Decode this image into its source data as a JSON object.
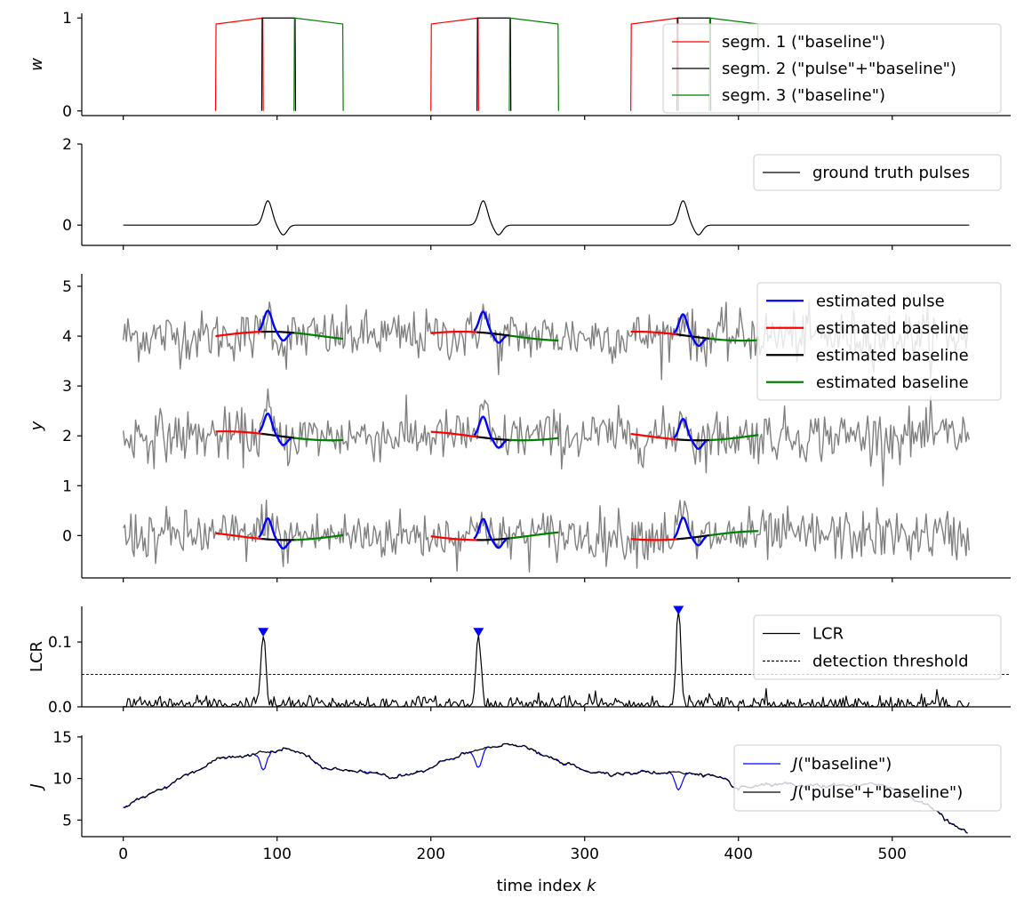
{
  "chart_data": [
    {
      "type": "line",
      "ylabel": "w",
      "ylim": [
        -0.05,
        1.05
      ],
      "yticks": [
        0,
        1
      ],
      "legend": "top-right",
      "series": [
        {
          "name": "segm. 1 (\"baseline\")",
          "color": "#ff0000",
          "windows": [
            [
              60,
              91
            ],
            [
              200,
              231
            ],
            [
              330,
              361
            ]
          ]
        },
        {
          "name": "segm. 2 (\"pulse\"+\"baseline\")",
          "color": "#000000",
          "windows": [
            [
              90,
              112
            ],
            [
              230,
              252
            ],
            [
              360,
              382
            ]
          ]
        },
        {
          "name": "segm. 3 (\"baseline\")",
          "color": "#008000",
          "windows": [
            [
              111,
              143
            ],
            [
              251,
              283
            ],
            [
              381,
              413
            ]
          ]
        }
      ]
    },
    {
      "type": "line",
      "ylabel": "",
      "ylim": [
        -0.5,
        2
      ],
      "yticks": [
        0,
        2
      ],
      "legend": "top-right",
      "series": [
        {
          "name": "ground truth pulses",
          "color": "#000000",
          "x_range": [
            0,
            550
          ],
          "pulse_centers": [
            94,
            234,
            364
          ],
          "amplitude": 0.6
        }
      ]
    },
    {
      "type": "line",
      "ylabel": "y",
      "ylim": [
        -0.85,
        5.25
      ],
      "yticks": [
        0,
        1,
        2,
        3,
        4,
        5
      ],
      "legend": "top-right",
      "offsets": [
        4,
        2,
        0
      ],
      "noise_color": "#808080",
      "series": [
        {
          "name": "estimated pulse",
          "color": "#0000ff"
        },
        {
          "name": "estimated baseline",
          "color": "#ff0000"
        },
        {
          "name": "estimated baseline",
          "color": "#000000"
        },
        {
          "name": "estimated baseline",
          "color": "#008000"
        }
      ]
    },
    {
      "type": "line",
      "ylabel": "LCR",
      "ylim": [
        0,
        0.155
      ],
      "yticks": [
        0.0,
        0.1
      ],
      "ytick_labels": [
        "0.0",
        "0.1"
      ],
      "threshold": 0.05,
      "legend": "top-right",
      "peaks": [
        [
          91,
          0.108
        ],
        [
          231,
          0.108
        ],
        [
          361,
          0.142
        ]
      ],
      "series": [
        {
          "name": "LCR",
          "color": "#000000"
        },
        {
          "name": "detection threshold",
          "color": "#000000",
          "style": "dashed",
          "value": 0.05
        }
      ]
    },
    {
      "type": "line",
      "ylabel": "J",
      "xlabel": "time index k",
      "xlim": [
        -27,
        577
      ],
      "xticks": [
        0,
        100,
        200,
        300,
        400,
        500
      ],
      "ylim": [
        3,
        15.2
      ],
      "yticks": [
        5,
        10,
        15
      ],
      "legend": "top-right",
      "series": [
        {
          "name": "J(\"baseline\")",
          "color": "#0000ff"
        },
        {
          "name": "J(\"pulse\"+\"baseline\")",
          "color": "#000000"
        }
      ],
      "anchors": [
        [
          0,
          6.5
        ],
        [
          10,
          7.3
        ],
        [
          20,
          8.5
        ],
        [
          35,
          9.8
        ],
        [
          50,
          11.3
        ],
        [
          60,
          12.2
        ],
        [
          80,
          12.6
        ],
        [
          95,
          13.3
        ],
        [
          105,
          13.6
        ],
        [
          115,
          13.1
        ],
        [
          130,
          11.2
        ],
        [
          150,
          10.9
        ],
        [
          175,
          10.4
        ],
        [
          195,
          10.8
        ],
        [
          215,
          12.5
        ],
        [
          240,
          13.8
        ],
        [
          255,
          14.3
        ],
        [
          275,
          12.6
        ],
        [
          300,
          10.9
        ],
        [
          330,
          10.6
        ],
        [
          360,
          10.8
        ],
        [
          385,
          10.2
        ],
        [
          400,
          8.6
        ],
        [
          420,
          9.2
        ],
        [
          450,
          9.0
        ],
        [
          480,
          9.3
        ],
        [
          500,
          8.9
        ],
        [
          520,
          7.2
        ],
        [
          540,
          4.4
        ],
        [
          549,
          3.5
        ]
      ]
    }
  ],
  "labels": {
    "xlabel_text": "time index ",
    "xlabel_var": "k"
  }
}
